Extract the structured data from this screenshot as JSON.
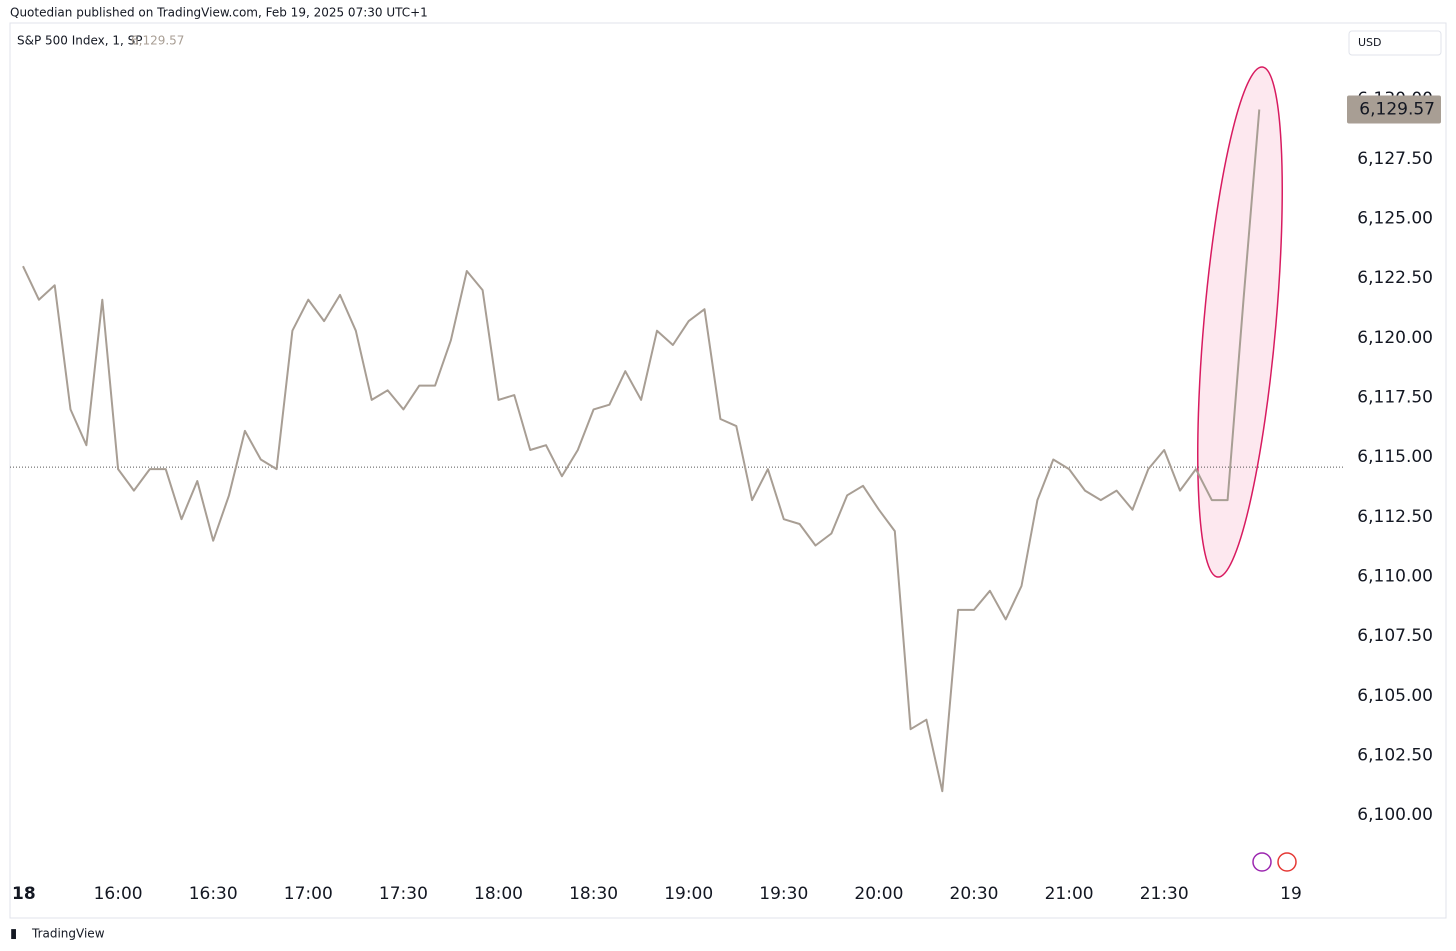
{
  "header": "Quotedian published on TradingView.com, Feb 19, 2025 07:30 UTC+1",
  "footer": "TradingView",
  "chart_data": {
    "type": "line",
    "legend_title": "S&P 500 Index, 1, SP",
    "currency": "USD",
    "x": [
      "15:30",
      "15:35",
      "15:40",
      "15:45",
      "15:50",
      "15:55",
      "16:00",
      "16:05",
      "16:10",
      "16:15",
      "16:20",
      "16:25",
      "16:30",
      "16:35",
      "16:40",
      "16:45",
      "16:50",
      "16:55",
      "17:00",
      "17:05",
      "17:10",
      "17:15",
      "17:20",
      "17:25",
      "17:30",
      "17:35",
      "17:40",
      "17:45",
      "17:50",
      "17:55",
      "18:00",
      "18:05",
      "18:10",
      "18:15",
      "18:20",
      "18:25",
      "18:30",
      "18:35",
      "18:40",
      "18:45",
      "18:50",
      "18:55",
      "19:00",
      "19:05",
      "19:10",
      "19:15",
      "19:20",
      "19:25",
      "19:30",
      "19:35",
      "19:40",
      "19:45",
      "19:50",
      "19:55",
      "20:00",
      "20:05",
      "20:10",
      "20:15",
      "20:20",
      "20:25",
      "20:30",
      "20:35",
      "20:40",
      "20:45",
      "20:50",
      "20:55",
      "21:00",
      "21:05",
      "21:10",
      "21:15",
      "21:20",
      "21:25",
      "21:30",
      "21:35",
      "21:40",
      "21:45",
      "21:50",
      "21:55",
      "22:00"
    ],
    "series": [
      {
        "name": "S&P 500 Index",
        "color": "#a89e94",
        "values": [
          6123.0,
          6121.6,
          6122.2,
          6117.0,
          6115.5,
          6121.6,
          6114.5,
          6113.6,
          6114.5,
          6114.5,
          6112.4,
          6114.0,
          6111.5,
          6113.4,
          6116.1,
          6114.9,
          6114.5,
          6120.3,
          6121.6,
          6120.7,
          6121.8,
          6120.3,
          6117.4,
          6117.8,
          6117.0,
          6118.0,
          6118.0,
          6119.9,
          6122.8,
          6122.0,
          6117.4,
          6117.6,
          6115.3,
          6115.5,
          6114.2,
          6115.3,
          6117.0,
          6117.2,
          6118.6,
          6117.4,
          6120.3,
          6119.7,
          6120.7,
          6121.2,
          6116.6,
          6116.3,
          6113.2,
          6114.5,
          6112.4,
          6112.2,
          6111.3,
          6111.8,
          6113.4,
          6113.8,
          6112.8,
          6111.9,
          6103.6,
          6104.0,
          6101.0,
          6108.6,
          6108.6,
          6109.4,
          6108.2,
          6109.6,
          6113.2,
          6114.9,
          6114.5,
          6113.6,
          6113.2,
          6113.6,
          6112.8,
          6114.5,
          6115.3,
          6113.6,
          6114.5,
          6113.2,
          6113.2,
          6121.6,
          6129.57
        ]
      }
    ],
    "last_value": {
      "value": 6129.57,
      "label": "6,129.57"
    },
    "previous_close": 6114.58,
    "ylim": [
      6097.7,
      6132.9
    ],
    "yticks": [
      {
        "value": 6100,
        "label": "6,100.00"
      },
      {
        "value": 6102.5,
        "label": "6,102.50"
      },
      {
        "value": 6105,
        "label": "6,105.00"
      },
      {
        "value": 6107.5,
        "label": "6,107.50"
      },
      {
        "value": 6110,
        "label": "6,110.00"
      },
      {
        "value": 6112.5,
        "label": "6,112.50"
      },
      {
        "value": 6115,
        "label": "6,115.00"
      },
      {
        "value": 6117.5,
        "label": "6,117.50"
      },
      {
        "value": 6120,
        "label": "6,120.00"
      },
      {
        "value": 6122.5,
        "label": "6,122.50"
      },
      {
        "value": 6125,
        "label": "6,125.00"
      },
      {
        "value": 6127.5,
        "label": "6,127.50"
      },
      {
        "value": 6130,
        "label": "6,130.00"
      }
    ],
    "xticks": [
      {
        "value": "15:30",
        "label": "18"
      },
      "16:00",
      "16:30",
      "17:00",
      "17:30",
      "18:00",
      "18:30",
      "19:00",
      "19:30",
      "20:00",
      "20:30",
      "21:00",
      "21:30",
      {
        "value": "22:10",
        "label": "19"
      }
    ]
  }
}
